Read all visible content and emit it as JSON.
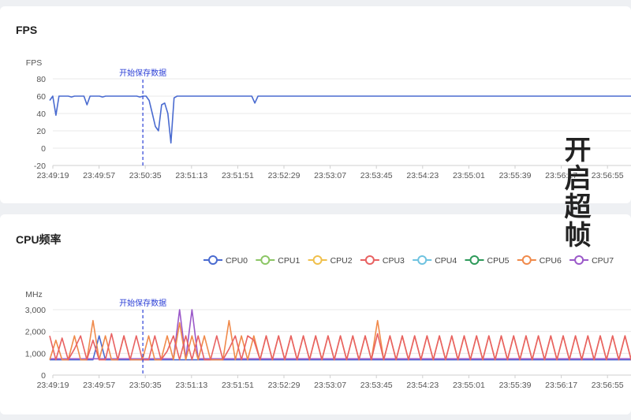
{
  "fps_panel": {
    "title": "FPS",
    "chart_data": {
      "type": "line",
      "title": "FPS",
      "ylabel": "FPS",
      "ylim": [
        -20,
        80
      ],
      "yticks": [
        "80",
        "60",
        "40",
        "20",
        "0",
        "-20"
      ],
      "xticks": [
        "23:49:19",
        "23:49:57",
        "23:50:35",
        "23:51:13",
        "23:51:51",
        "23:52:29",
        "23:53:07",
        "23:53:45",
        "23:54:23",
        "23:55:01",
        "23:55:39",
        "23:56:17",
        "23:56:55"
      ],
      "marker": {
        "label": "开始保存数据",
        "x": "23:50:33"
      },
      "series": [
        {
          "color": "#4a6bd0",
          "values": [
            55,
            60,
            38,
            60,
            60,
            60,
            60,
            59,
            60,
            60,
            60,
            60,
            50,
            60,
            60,
            60,
            60,
            59,
            60,
            60,
            60,
            60,
            60,
            60,
            60,
            60,
            60,
            60,
            60,
            59,
            60,
            60,
            55,
            40,
            25,
            20,
            50,
            52,
            40,
            6,
            58,
            60,
            60,
            60,
            60,
            60,
            60,
            60,
            60,
            60,
            60,
            60,
            60,
            60,
            60,
            60,
            60,
            60,
            60,
            60,
            60,
            60,
            60,
            60,
            60,
            60,
            52,
            60,
            60,
            60,
            60,
            60,
            60,
            60,
            60,
            60,
            60,
            60,
            60,
            60,
            60,
            60,
            60,
            60,
            60,
            60,
            60,
            60,
            60,
            60,
            60,
            60,
            60,
            60,
            60,
            60,
            60,
            60,
            60,
            60,
            60,
            60,
            60,
            60,
            60,
            60,
            60,
            60,
            60,
            60,
            60,
            60,
            60,
            60,
            60,
            60,
            60,
            60,
            60,
            60,
            60,
            60,
            60,
            60,
            60,
            60,
            60,
            60,
            60,
            60,
            60,
            60,
            60,
            60,
            60,
            60,
            60,
            60,
            60,
            60,
            60,
            60,
            60,
            60,
            60,
            60,
            60,
            60,
            60,
            60,
            60,
            60,
            60,
            60,
            60,
            60,
            60,
            60,
            60,
            60,
            60,
            60,
            60,
            60,
            60,
            60,
            60,
            60,
            60,
            60,
            60,
            60,
            60,
            60,
            60,
            60,
            60,
            60,
            60,
            60,
            60,
            60,
            60,
            60,
            60,
            60,
            60,
            60,
            60,
            60,
            60,
            60,
            60,
            60,
            60,
            60,
            60,
            59
          ]
        }
      ]
    }
  },
  "cpu_panel": {
    "title": "CPU频率",
    "chart_data": {
      "type": "line",
      "title": "CPU频率",
      "ylabel": "MHz",
      "ylim": [
        0,
        3000
      ],
      "yticks": [
        "3,000",
        "2,000",
        "1,000",
        "0"
      ],
      "xticks": [
        "23:49:19",
        "23:49:57",
        "23:50:35",
        "23:51:13",
        "23:51:51",
        "23:52:29",
        "23:53:07",
        "23:53:45",
        "23:54:23",
        "23:55:01",
        "23:55:39",
        "23:56:17",
        "23:56:55"
      ],
      "marker": {
        "label": "开始保存数据",
        "x": "23:50:33"
      },
      "legend": [
        "CPU0",
        "CPU1",
        "CPU2",
        "CPU3",
        "CPU4",
        "CPU5",
        "CPU6",
        "CPU7"
      ],
      "legend_colors": [
        "#4a6bd0",
        "#8cc665",
        "#f0c04c",
        "#e86262",
        "#6fc3e0",
        "#2e9a5a",
        "#f08a4b",
        "#9b59c9"
      ],
      "legend_position": "top-right",
      "series": [
        {
          "name": "CPU0",
          "color": "#4a6bd0",
          "values": [
            700,
            700,
            700,
            700,
            700,
            700,
            700,
            700,
            1800,
            700,
            700,
            700,
            700,
            700,
            700,
            700,
            700,
            700,
            700,
            700,
            700,
            700,
            700,
            700,
            700,
            700,
            700,
            700,
            700,
            700,
            700,
            700,
            700,
            700,
            700,
            700,
            700,
            700,
            700,
            700,
            700,
            700,
            700,
            700,
            700,
            700,
            700,
            700,
            700,
            700,
            700,
            700,
            700,
            700,
            700,
            700,
            700,
            700,
            700,
            700,
            700,
            700,
            700,
            700,
            700,
            700,
            700,
            700,
            700,
            700,
            700,
            700,
            700,
            700,
            700,
            700,
            700,
            700,
            700,
            700,
            700,
            700,
            700,
            700,
            700,
            700,
            700,
            700,
            700,
            700,
            700,
            700,
            700,
            700,
            700,
            700,
            700,
            700,
            700,
            700
          ]
        },
        {
          "name": "CPU7",
          "color": "#9b59c9",
          "values": [
            750,
            750,
            750,
            750,
            750,
            750,
            750,
            750,
            750,
            750,
            750,
            750,
            750,
            750,
            750,
            750,
            750,
            750,
            750,
            750,
            750,
            3000,
            750,
            3000,
            750,
            750,
            750,
            750,
            750,
            750,
            750,
            750,
            750,
            750,
            750,
            750,
            750,
            750,
            750,
            750,
            750,
            750,
            750,
            750,
            750,
            750,
            750,
            750,
            750,
            750,
            750,
            750,
            750,
            750,
            750,
            750,
            750,
            750,
            750,
            750,
            750,
            750,
            750,
            750,
            750,
            750,
            750,
            750,
            750,
            750,
            750,
            750,
            750,
            750,
            750,
            750,
            750,
            750,
            750,
            750,
            750,
            750,
            750,
            750,
            750,
            750,
            750,
            750,
            750,
            750,
            750,
            750,
            750,
            750,
            750,
            750,
            750,
            750,
            750,
            750
          ]
        },
        {
          "name": "CPU6",
          "color": "#f08a4b",
          "values": [
            700,
            1600,
            700,
            700,
            1800,
            700,
            700,
            2500,
            700,
            1800,
            700,
            700,
            1800,
            700,
            700,
            700,
            1800,
            700,
            700,
            1800,
            700,
            2400,
            700,
            1800,
            700,
            1800,
            700,
            700,
            700,
            2500,
            700,
            1800,
            700,
            1800,
            700,
            1800,
            700,
            1800,
            700,
            1800,
            700,
            1800,
            700,
            1800,
            700,
            1800,
            700,
            1800,
            700,
            1800,
            700,
            1800,
            700,
            2500,
            700,
            1800,
            700,
            1800,
            700,
            1800,
            700,
            1800,
            700,
            1800,
            700,
            1800,
            700,
            1800,
            700,
            1800,
            700,
            1800,
            700,
            1800,
            700,
            1800,
            700,
            1800,
            700,
            1800,
            700,
            1800,
            700,
            1800,
            700,
            1800,
            700,
            1800,
            700,
            1800,
            700,
            1800,
            700,
            1800,
            700,
            1800,
            700,
            1800,
            700,
            1800
          ]
        },
        {
          "name": "CPU3",
          "color": "#e86262",
          "values": [
            1800,
            700,
            1700,
            700,
            1200,
            1800,
            700,
            1600,
            700,
            700,
            1900,
            700,
            1800,
            700,
            1800,
            700,
            700,
            1800,
            700,
            1100,
            1800,
            700,
            1800,
            700,
            1800,
            700,
            700,
            1800,
            700,
            1200,
            1800,
            700,
            1800,
            1600,
            700,
            1800,
            700,
            1800,
            700,
            1800,
            700,
            1800,
            700,
            1800,
            700,
            1800,
            700,
            1800,
            700,
            1800,
            700,
            1800,
            700,
            1900,
            700,
            1800,
            700,
            1800,
            700,
            1800,
            700,
            1800,
            700,
            1800,
            700,
            1800,
            700,
            1800,
            700,
            1800,
            700,
            1800,
            700,
            1800,
            700,
            1800,
            700,
            1800,
            700,
            1800,
            700,
            1800,
            700,
            1800,
            700,
            1800,
            700,
            1800,
            700,
            1800,
            700,
            1800,
            700,
            1800,
            700,
            1800,
            700,
            1800,
            700,
            1800
          ]
        }
      ]
    }
  },
  "overlay_text": "开启超帧"
}
